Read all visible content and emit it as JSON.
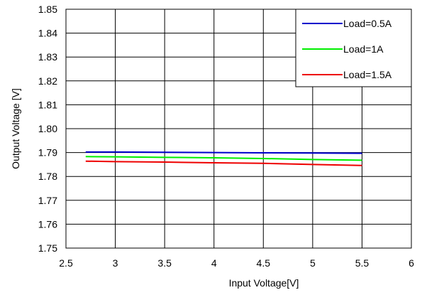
{
  "chart_data": {
    "type": "line",
    "title": "",
    "xlabel": "Input Voltage[V]",
    "ylabel": "Output Voltage [V]",
    "xlim": [
      2.5,
      6
    ],
    "ylim": [
      1.75,
      1.85
    ],
    "x_ticks": [
      "2.5",
      "3",
      "3.5",
      "4",
      "4.5",
      "5",
      "5.5",
      "6"
    ],
    "y_ticks": [
      "1.75",
      "1.76",
      "1.77",
      "1.78",
      "1.79",
      "1.80",
      "1.81",
      "1.82",
      "1.83",
      "1.84",
      "1.85"
    ],
    "grid": true,
    "legend_position": "top-right",
    "series": [
      {
        "name": "Load=0.5A",
        "color": "#0000cc",
        "x": [
          2.7,
          3.0,
          3.5,
          4.0,
          4.5,
          5.0,
          5.5
        ],
        "y": [
          1.7902,
          1.7902,
          1.7901,
          1.79,
          1.7899,
          1.7898,
          1.7897
        ]
      },
      {
        "name": "Load=1A",
        "color": "#00ee00",
        "x": [
          2.7,
          3.0,
          3.5,
          4.0,
          4.5,
          5.0,
          5.5
        ],
        "y": [
          1.7883,
          1.7882,
          1.788,
          1.7878,
          1.7875,
          1.7871,
          1.7868
        ]
      },
      {
        "name": "Load=1.5A",
        "color": "#ee0000",
        "x": [
          2.7,
          3.0,
          3.5,
          4.0,
          4.5,
          5.0,
          5.5
        ],
        "y": [
          1.7864,
          1.7862,
          1.786,
          1.7857,
          1.7855,
          1.785,
          1.7846
        ]
      }
    ]
  }
}
